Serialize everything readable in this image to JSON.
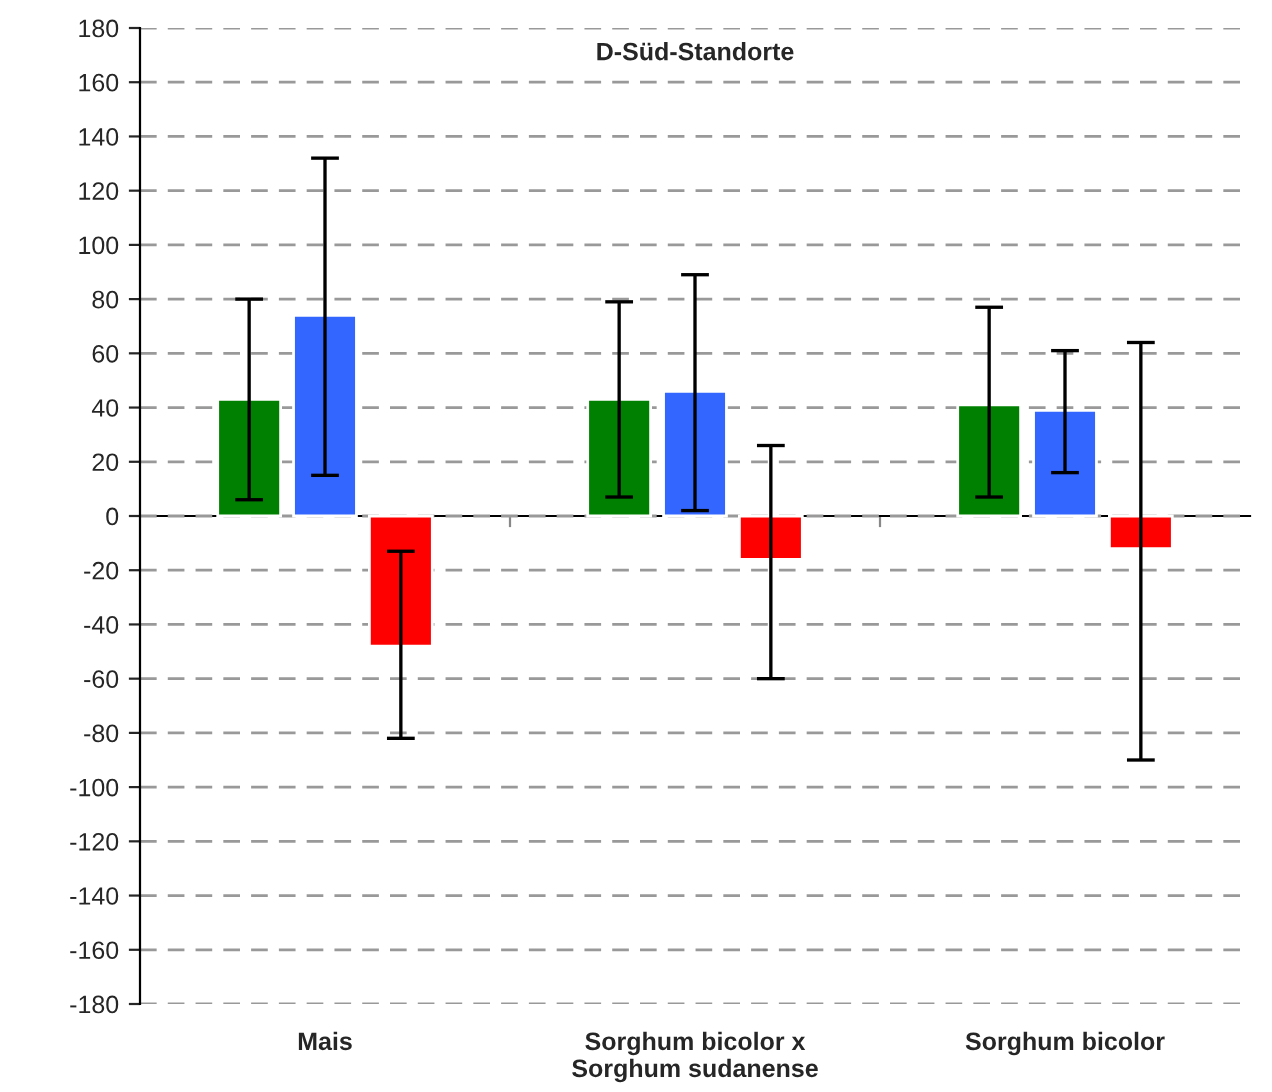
{
  "chart_data": {
    "type": "bar",
    "title": "D-Süd-Standorte",
    "categories": [
      "Mais",
      "Sorghum bicolor x\nSorghum sudanense",
      "Sorghum bicolor"
    ],
    "series": [
      {
        "color": "#008000",
        "values": [
          43,
          43,
          41
        ],
        "errors": [
          [
            6,
            80
          ],
          [
            7,
            79
          ],
          [
            7,
            77
          ]
        ]
      },
      {
        "color": "#3366ff",
        "values": [
          74,
          46,
          39
        ],
        "errors": [
          [
            15,
            132
          ],
          [
            2,
            89
          ],
          [
            16,
            61
          ]
        ]
      },
      {
        "color": "#ff0000",
        "values": [
          -48,
          -16,
          -12
        ],
        "errors": [
          [
            -82,
            -13
          ],
          [
            -60,
            26
          ],
          [
            -90,
            64
          ]
        ]
      }
    ],
    "ylim": [
      -180,
      180
    ],
    "yticks": [
      -180,
      -160,
      -140,
      -120,
      -100,
      -80,
      -60,
      -40,
      -20,
      0,
      20,
      40,
      60,
      80,
      100,
      120,
      140,
      160,
      180
    ],
    "grid": "y"
  }
}
